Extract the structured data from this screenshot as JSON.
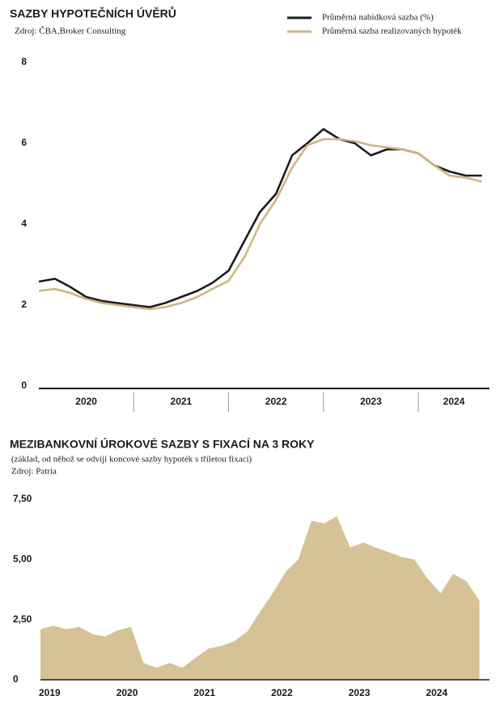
{
  "chart_data": [
    {
      "type": "line",
      "title": "SAZBY HYPOTEČNÍCH ÚVĚRŮ",
      "subtitle": "Zdroj: ČBA,Broker Consulting",
      "legend": "upper right",
      "categories": [
        "2020",
        "2021",
        "2022",
        "2023",
        "2024"
      ],
      "x": [
        2020,
        2020.17,
        2020.33,
        2020.5,
        2020.67,
        2020.83,
        2021,
        2021.17,
        2021.33,
        2021.5,
        2021.67,
        2021.83,
        2022,
        2022.17,
        2022.33,
        2022.5,
        2022.67,
        2022.83,
        2023,
        2023.17,
        2023.33,
        2023.5,
        2023.67,
        2023.83,
        2024,
        2024.17,
        2024.33,
        2024.5,
        2024.67
      ],
      "xlim": [
        2020,
        2024.75
      ],
      "ylim": [
        0,
        8
      ],
      "yticks": [
        0,
        2,
        4,
        6,
        8
      ],
      "series": [
        {
          "name": "Průměrná nabídková sazba (%)",
          "color": "#1c1c1c",
          "values": [
            2.58,
            2.65,
            2.45,
            2.2,
            2.1,
            2.05,
            2.0,
            1.95,
            2.05,
            2.2,
            2.35,
            2.55,
            2.85,
            3.6,
            4.3,
            4.75,
            5.7,
            6.0,
            6.35,
            6.1,
            6.0,
            5.7,
            5.85,
            5.85,
            5.75,
            5.45,
            5.3,
            5.2,
            5.2
          ]
        },
        {
          "name": "Průměrná sazba realizovaných hypoték",
          "color": "#cdb684",
          "values": [
            2.35,
            2.4,
            2.3,
            2.15,
            2.05,
            2.0,
            1.95,
            1.9,
            1.95,
            2.05,
            2.2,
            2.4,
            2.6,
            3.2,
            4.0,
            4.6,
            5.4,
            5.95,
            6.1,
            6.1,
            6.05,
            5.95,
            5.9,
            5.85,
            5.75,
            5.45,
            5.2,
            5.15,
            5.05
          ]
        }
      ]
    },
    {
      "type": "area",
      "title": "MEZIBANKOVNÍ ÚROKOVÉ SAZBY S FIXACÍ NA 3 ROKY",
      "subtitle": "(základ, od něhož se odvíjí koncové sazby hypoték s tříletou fixací)",
      "source": "Zdroj: Patria",
      "color": "#d6c296",
      "x": [
        2019,
        2019.17,
        2019.33,
        2019.5,
        2019.67,
        2019.83,
        2020,
        2020.17,
        2020.33,
        2020.5,
        2020.67,
        2020.83,
        2021,
        2021.17,
        2021.33,
        2021.5,
        2021.67,
        2021.83,
        2022,
        2022.17,
        2022.33,
        2022.5,
        2022.67,
        2022.83,
        2023,
        2023.17,
        2023.33,
        2023.5,
        2023.67,
        2023.83,
        2024,
        2024.17,
        2024.33,
        2024.5,
        2024.67
      ],
      "values": [
        2.1,
        2.25,
        2.1,
        2.2,
        1.9,
        1.8,
        2.05,
        2.2,
        0.7,
        0.5,
        0.7,
        0.5,
        0.9,
        1.3,
        1.4,
        1.6,
        2.0,
        2.8,
        3.6,
        4.5,
        5.0,
        6.6,
        6.5,
        6.8,
        5.5,
        5.7,
        5.5,
        5.3,
        5.1,
        5.0,
        4.2,
        3.6,
        4.4,
        4.1,
        3.3
      ],
      "xlim": [
        2019,
        2024.8
      ],
      "xticks": [
        2019,
        2020,
        2021,
        2022,
        2023,
        2024
      ],
      "ylim": [
        0,
        7.5
      ],
      "yticks": [
        0,
        {
          "value": 2.5,
          "label": "2,50"
        },
        {
          "value": 5,
          "label": "5,00"
        },
        {
          "value": 7.5,
          "label": "7,50"
        }
      ]
    }
  ]
}
